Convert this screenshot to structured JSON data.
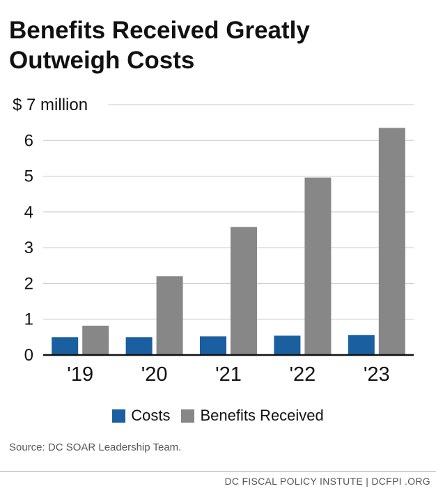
{
  "title": "Benefits Received Greatly Outweigh Costs",
  "chart_data": {
    "type": "bar",
    "categories": [
      "'19",
      "'20",
      "'21",
      "'22",
      "'23"
    ],
    "series": [
      {
        "name": "Costs",
        "values": [
          0.5,
          0.5,
          0.52,
          0.54,
          0.56
        ],
        "color": "#1a5fa0"
      },
      {
        "name": "Benefits Received",
        "values": [
          0.82,
          2.2,
          3.58,
          4.96,
          6.35
        ],
        "color": "#878787"
      }
    ],
    "ylim": [
      0,
      7
    ],
    "yticks": [
      0,
      1,
      2,
      3,
      4,
      5,
      6,
      7
    ],
    "ytick_labels": [
      "0",
      "1",
      "2",
      "3",
      "4",
      "5",
      "6",
      "$ 7 million"
    ],
    "grid": true,
    "legend_position": "bottom"
  },
  "legend": {
    "costs_label": "Costs",
    "benefits_label": "Benefits Received",
    "costs_color": "#1a5fa0",
    "benefits_color": "#878787"
  },
  "source": "Source: DC SOAR Leadership Team.",
  "footer": "DC FISCAL POLICY INSTUTE  |  DCFPI .ORG"
}
